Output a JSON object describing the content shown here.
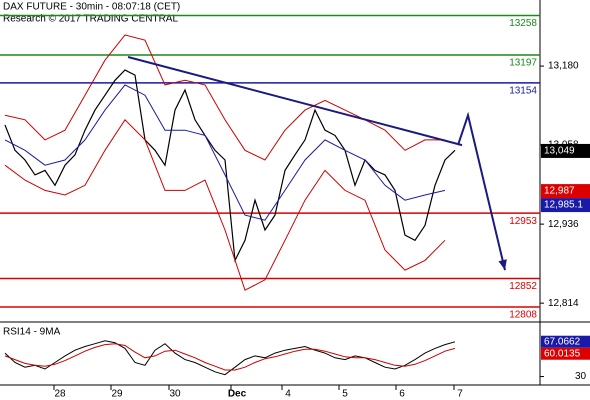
{
  "chart_data": {
    "type": "line",
    "title": "DAX FUTURE - 30min - 08:07:18 (CET)",
    "subtitle": "Research © 2017 TRADING CENTRAL",
    "xlim": [
      0,
      540
    ],
    "xticks": [
      {
        "value": 60,
        "label": "28"
      },
      {
        "value": 117,
        "label": "29"
      },
      {
        "value": 175,
        "label": "30"
      },
      {
        "value": 237,
        "label": "Dec"
      },
      {
        "value": 288,
        "label": "4"
      },
      {
        "value": 345,
        "label": "5"
      },
      {
        "value": 402,
        "label": "6"
      },
      {
        "value": 460,
        "label": "7"
      }
    ],
    "ylim": [
      12788,
      13282
    ],
    "yticks": [
      {
        "value": 13180,
        "label": "13,180"
      },
      {
        "value": 13058,
        "label": "13,058"
      },
      {
        "value": 12936,
        "label": "12,936"
      },
      {
        "value": 12814,
        "label": "12,814"
      }
    ],
    "series": [
      {
        "name": "DAX FUTURE",
        "color": "#000000",
        "x": [
          5,
          15,
          25,
          35,
          45,
          55,
          65,
          75,
          85,
          95,
          105,
          115,
          125,
          135,
          145,
          155,
          165,
          175,
          185,
          195,
          205,
          215,
          225,
          235,
          245,
          255,
          265,
          275,
          285,
          295,
          305,
          315,
          325,
          335,
          345,
          355,
          365,
          375,
          385,
          395,
          405,
          415,
          425,
          435,
          445,
          455
        ],
        "values": [
          13089,
          13050,
          13035,
          13012,
          13019,
          12996,
          13027,
          13043,
          13081,
          13112,
          13135,
          13158,
          13174,
          13166,
          13066,
          13050,
          13027,
          13112,
          13143,
          13097,
          13073,
          13050,
          13035,
          12880,
          12911,
          12973,
          12927,
          12950,
          13019,
          13043,
          13066,
          13112,
          13081,
          13073,
          13050,
          12996,
          13035,
          13019,
          13012,
          12988,
          12919,
          12911,
          12934,
          12996,
          13035,
          13050
        ]
      },
      {
        "name": "Upper band",
        "color": "#cc0000",
        "x": [
          5,
          25,
          45,
          65,
          85,
          105,
          125,
          145,
          165,
          185,
          205,
          225,
          245,
          265,
          285,
          305,
          325,
          345,
          365,
          385,
          405,
          425,
          445
        ],
        "values": [
          13104,
          13097,
          13066,
          13081,
          13135,
          13189,
          13228,
          13220,
          13151,
          13158,
          13151,
          13097,
          13050,
          13035,
          13081,
          13112,
          13127,
          13112,
          13097,
          13081,
          13050,
          13066,
          13066
        ]
      },
      {
        "name": "Lower band",
        "color": "#cc0000",
        "x": [
          5,
          25,
          45,
          65,
          85,
          105,
          125,
          145,
          165,
          185,
          205,
          225,
          245,
          265,
          285,
          305,
          325,
          345,
          365,
          385,
          405,
          425,
          445
        ],
        "values": [
          13027,
          13004,
          12988,
          12981,
          12996,
          13050,
          13097,
          13066,
          12988,
          12988,
          13004,
          12927,
          12834,
          12850,
          12911,
          12973,
          13019,
          12988,
          12973,
          12896,
          12865,
          12880,
          12911
        ]
      },
      {
        "name": "Moving average",
        "color": "#1a1aa8",
        "x": [
          5,
          25,
          45,
          65,
          85,
          105,
          125,
          145,
          165,
          185,
          205,
          225,
          245,
          265,
          285,
          305,
          325,
          345,
          365,
          385,
          405,
          425,
          445
        ],
        "values": [
          13066,
          13050,
          13027,
          13035,
          13066,
          13112,
          13151,
          13135,
          13081,
          13081,
          13073,
          13012,
          12950,
          12942,
          12988,
          13035,
          13066,
          13050,
          13035,
          12996,
          12973,
          12981,
          12988
        ]
      }
    ],
    "levels": [
      {
        "value": 13258,
        "color": "#1a8a1a"
      },
      {
        "value": 13197,
        "color": "#1a8a1a"
      },
      {
        "value": 13154,
        "color": "#1a1aa8"
      },
      {
        "value": 12953,
        "color": "#dd0000"
      },
      {
        "value": 12852,
        "color": "#dd0000"
      },
      {
        "value": 12808,
        "color": "#dd0000"
      }
    ],
    "trendline": {
      "color": "#1a1a80",
      "x": [
        128,
        462
      ],
      "values": [
        13194,
        13058
      ]
    },
    "arrow": {
      "color": "#1a1a80",
      "x": [
        458,
        468,
        505
      ],
      "values": [
        13058,
        13104,
        12865
      ]
    },
    "price_boxes": [
      {
        "value": 13049,
        "label": "13,049",
        "color": "#000000"
      },
      {
        "value": 12987,
        "label": "12,987",
        "color": "#dd0000"
      },
      {
        "value": 12985.1,
        "label": "12,985.1",
        "color": "#1a1aa8"
      }
    ],
    "rsi": {
      "title": "RSI14 - 9MA",
      "ylim": [
        21,
        87
      ],
      "yticks": [
        30
      ],
      "series": [
        {
          "name": "RSI14",
          "color": "#000000",
          "values": [
            55,
            45,
            40,
            42,
            38,
            45,
            52,
            58,
            62,
            65,
            68,
            66,
            60,
            45,
            42,
            58,
            65,
            55,
            48,
            45,
            40,
            35,
            32,
            40,
            48,
            52,
            50,
            55,
            58,
            60,
            62,
            58,
            55,
            50,
            48,
            52,
            50,
            45,
            40,
            38,
            42,
            48,
            55,
            60,
            64,
            67
          ]
        },
        {
          "name": "9MA",
          "color": "#cc0000",
          "values": [
            52,
            48,
            44,
            42,
            41,
            43,
            47,
            52,
            57,
            61,
            64,
            65,
            63,
            56,
            50,
            52,
            57,
            58,
            54,
            50,
            45,
            41,
            37,
            37,
            40,
            45,
            49,
            51,
            54,
            57,
            59,
            59,
            57,
            54,
            51,
            50,
            50,
            48,
            45,
            42,
            41,
            43,
            47,
            52,
            57,
            60
          ]
        }
      ],
      "boxes": [
        {
          "value": 67.0662,
          "color": "#1a1aa8"
        },
        {
          "value": 60.0135,
          "color": "#dd0000"
        }
      ]
    }
  }
}
